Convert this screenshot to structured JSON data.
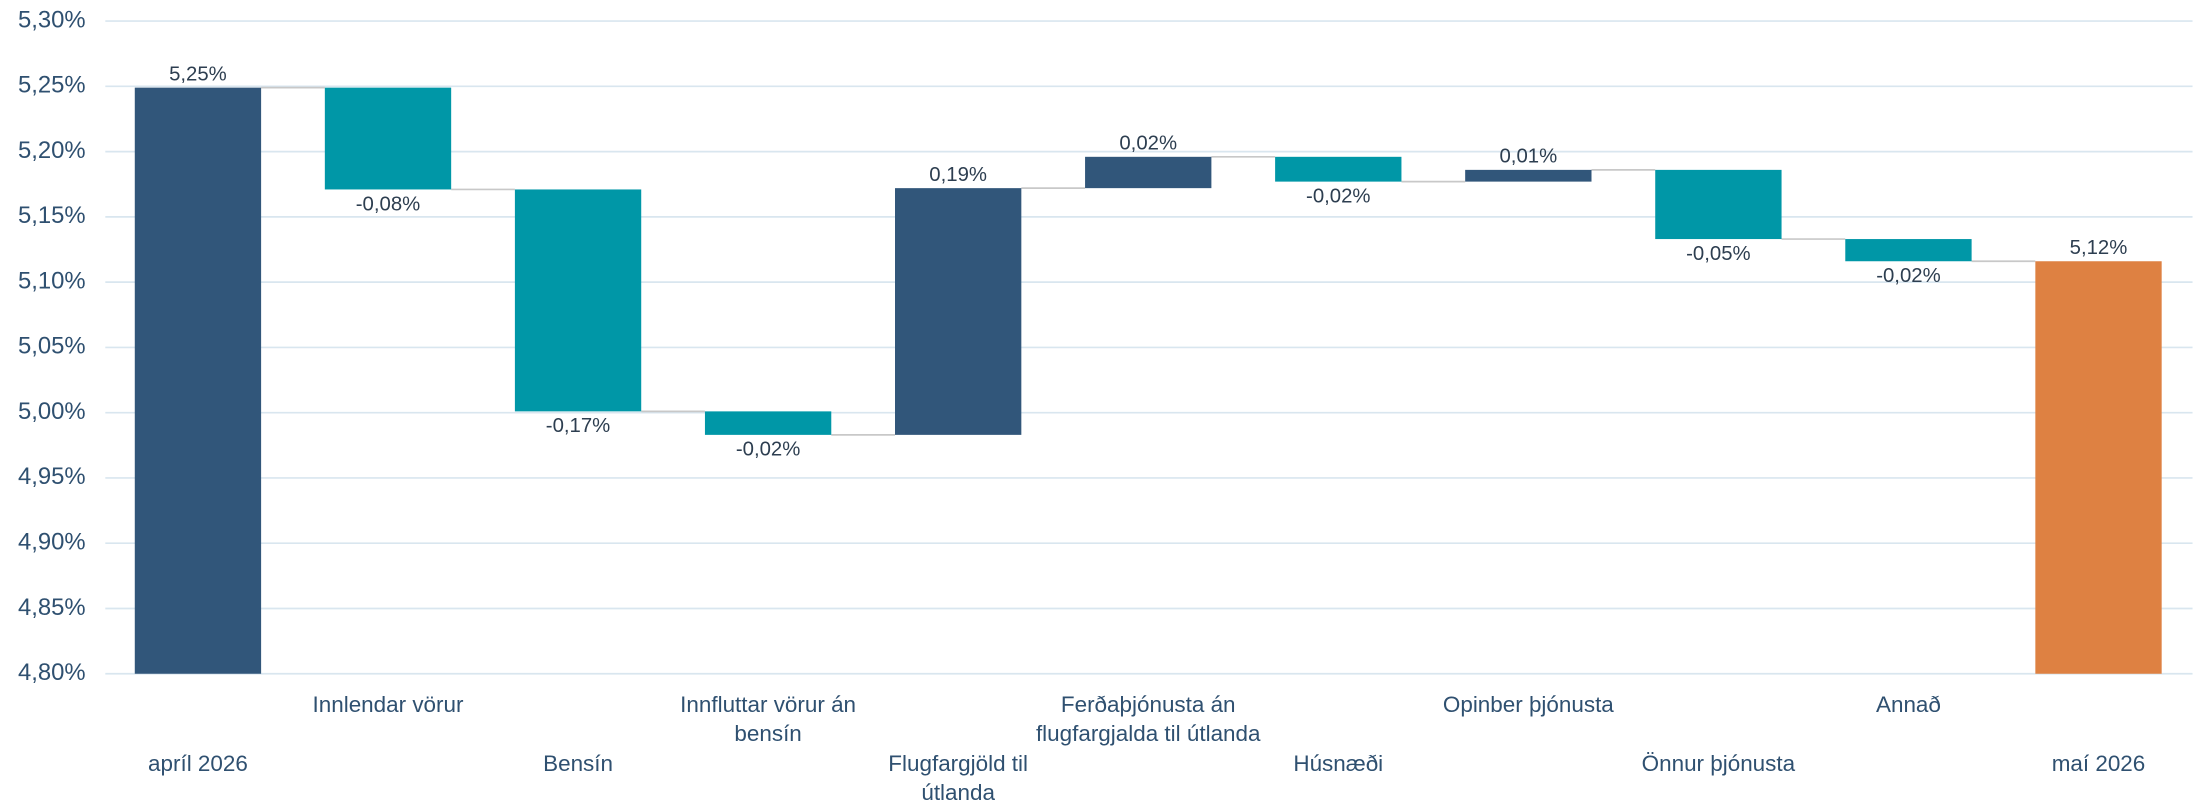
{
  "chart_data": {
    "type": "waterfall",
    "categories": [
      "apríl 2026",
      "Innlendar vörur",
      "Bensín",
      "Innfluttar vörur án bensín",
      "Flugfargjöld til útlanda",
      "Ferðaþjónusta án flugfargjalda til útlanda",
      "Húsnæði",
      "Opinber þjónusta",
      "Önnur þjónusta",
      "Annað",
      "maí 2026"
    ],
    "measure": [
      "total",
      "relative",
      "relative",
      "relative",
      "relative",
      "relative",
      "relative",
      "relative",
      "relative",
      "relative",
      "total"
    ],
    "values": [
      5.249,
      -0.078,
      -0.17,
      -0.018,
      0.189,
      0.024,
      -0.019,
      0.009,
      -0.053,
      -0.017,
      5.116
    ],
    "value_labels": [
      "5,25%",
      "-0,08%",
      "-0,17%",
      "-0,02%",
      "0,19%",
      "0,02%",
      "-0,02%",
      "0,01%",
      "-0,05%",
      "-0,02%",
      "5,12%"
    ],
    "colors": [
      "#31567a",
      "#0097a7",
      "#0097a7",
      "#0097a7",
      "#31567a",
      "#31567a",
      "#0097a7",
      "#31567a",
      "#0097a7",
      "#0097a7",
      "#de8142"
    ],
    "ylim": [
      4.8,
      5.3
    ],
    "yticks": [
      {
        "value": 4.8,
        "label": "4,80%"
      },
      {
        "value": 4.85,
        "label": "4,85%"
      },
      {
        "value": 4.9,
        "label": "4,90%"
      },
      {
        "value": 4.95,
        "label": "4,95%"
      },
      {
        "value": 5.0,
        "label": "5,00%"
      },
      {
        "value": 5.05,
        "label": "5,05%"
      },
      {
        "value": 5.1,
        "label": "5,10%"
      },
      {
        "value": 5.15,
        "label": "5,15%"
      },
      {
        "value": 5.2,
        "label": "5,20%"
      },
      {
        "value": 5.25,
        "label": "5,25%"
      },
      {
        "value": 5.3,
        "label": "5,30%"
      }
    ],
    "grid": true
  }
}
